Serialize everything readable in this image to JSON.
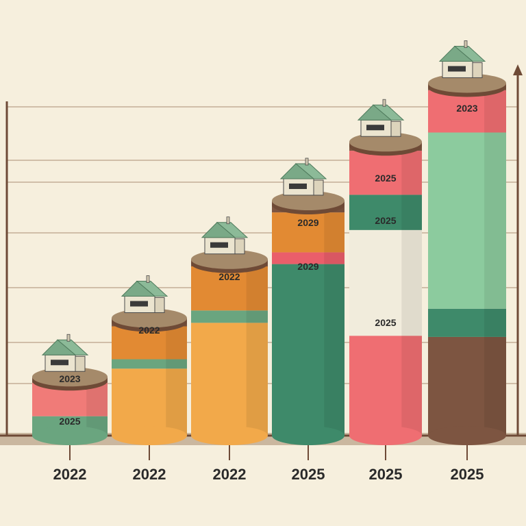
{
  "chart_data": {
    "type": "bar",
    "title": "",
    "xlabel": "",
    "ylabel": "",
    "categories": [
      "2022",
      "2022",
      "2022",
      "2025",
      "2025",
      "2025"
    ],
    "bars": [
      {
        "category": "2022",
        "labels": [
          "2023",
          "2025"
        ],
        "segments": [
          {
            "color": "#6aa57f",
            "share": 0.33
          },
          {
            "color": "#f1ecdc",
            "share": 0.0
          },
          {
            "color": "#f07b78",
            "share": 0.57
          },
          {
            "color": "#7d5541",
            "share": 0.1
          }
        ]
      },
      {
        "category": "2022",
        "labels": [
          "2022"
        ],
        "segments": [
          {
            "color": "#f2a94a",
            "share": 0.57
          },
          {
            "color": "#6aa57f",
            "share": 0.08
          },
          {
            "color": "#e28a33",
            "share": 0.28
          },
          {
            "color": "#7d5541",
            "share": 0.07
          }
        ]
      },
      {
        "category": "2022",
        "labels": [
          "2022"
        ],
        "segments": [
          {
            "color": "#f2a94a",
            "share": 0.64
          },
          {
            "color": "#6aa57f",
            "share": 0.07
          },
          {
            "color": "#e28a33",
            "share": 0.25
          },
          {
            "color": "#7d5541",
            "share": 0.04
          }
        ]
      },
      {
        "category": "2025",
        "labels": [
          "2029",
          "2029"
        ],
        "segments": [
          {
            "color": "#3e8a6a",
            "share": 0.73
          },
          {
            "color": "#ea5e6a",
            "share": 0.05
          },
          {
            "color": "#e28a33",
            "share": 0.17
          },
          {
            "color": "#7d5541",
            "share": 0.05
          }
        ]
      },
      {
        "category": "2025",
        "labels": [
          "2025",
          "2025",
          "2025"
        ],
        "segments": [
          {
            "color": "#ef6e72",
            "share": 0.34
          },
          {
            "color": "#f1ecdc",
            "share": 0.36
          },
          {
            "color": "#3e8a6a",
            "share": 0.12
          },
          {
            "color": "#ef6e72",
            "share": 0.15
          },
          {
            "color": "#7d5541",
            "share": 0.03
          }
        ]
      },
      {
        "category": "2025",
        "labels": [
          "2023"
        ],
        "segments": [
          {
            "color": "#7d5541",
            "share": 0.28
          },
          {
            "color": "#3e8a6a",
            "share": 0.08
          },
          {
            "color": "#8ccb9e",
            "share": 0.5
          },
          {
            "color": "#ef6e72",
            "share": 0.12
          },
          {
            "color": "#7d5541",
            "share": 0.02
          }
        ]
      }
    ],
    "values": [
      1,
      2,
      3,
      4,
      5,
      6
    ],
    "ylim": [
      0,
      6.6
    ],
    "grid": true,
    "legend": "none",
    "colors": {
      "background": "#f6efdd",
      "grid": "#b49880",
      "axis": "#6e4a36",
      "top": "#a58a6a",
      "rim": "#6e4a36",
      "text": "#2a2a2a"
    }
  }
}
